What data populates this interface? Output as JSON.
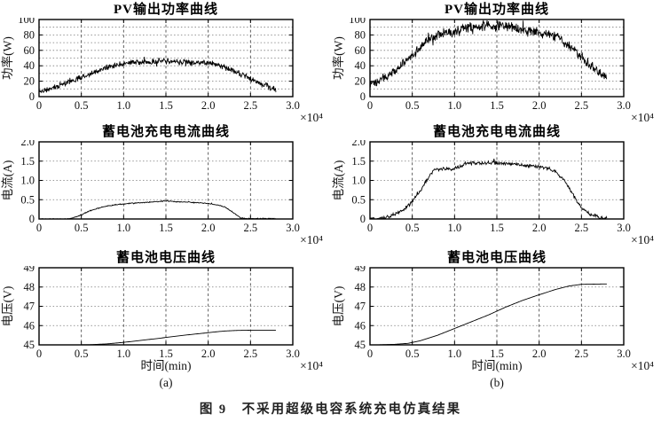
{
  "figure": {
    "caption": "图 9　不采用超级电容系统充电仿真结果"
  },
  "chart_data": [
    {
      "id": "pv-power-a",
      "type": "line",
      "title": "PV输出功率曲线",
      "ylabel": "功率(W)",
      "xlabel": "",
      "sublabel": "",
      "x_scale_label": "×10⁴",
      "xlim": [
        0,
        3.0
      ],
      "xticks": [
        0,
        0.5,
        1.0,
        1.5,
        2.0,
        2.5,
        3.0
      ],
      "xtick_labels": [
        "0",
        "0.5",
        "1.0",
        "1.5",
        "2.0",
        "2.5",
        "3.0"
      ],
      "ylim": [
        0,
        100
      ],
      "yticks": [
        0,
        20,
        40,
        60,
        80,
        100
      ],
      "ytick_labels": [
        "0",
        "20",
        "40",
        "60",
        "80",
        "100"
      ],
      "minor_y_step": 10,
      "grid": true,
      "noise_amp": 4.5,
      "samples": 560,
      "seed": 11,
      "stroke_width": 0.85,
      "points": [
        [
          0,
          6
        ],
        [
          0.1,
          9
        ],
        [
          0.2,
          13
        ],
        [
          0.3,
          17
        ],
        [
          0.4,
          21
        ],
        [
          0.5,
          25
        ],
        [
          0.6,
          29
        ],
        [
          0.7,
          34
        ],
        [
          0.8,
          38
        ],
        [
          0.9,
          41
        ],
        [
          1.0,
          43
        ],
        [
          1.1,
          44
        ],
        [
          1.2,
          44
        ],
        [
          1.3,
          45
        ],
        [
          1.4,
          46
        ],
        [
          1.5,
          46
        ],
        [
          1.6,
          45
        ],
        [
          1.7,
          45
        ],
        [
          1.8,
          44
        ],
        [
          1.9,
          44
        ],
        [
          2.0,
          43
        ],
        [
          2.1,
          42
        ],
        [
          2.2,
          38
        ],
        [
          2.3,
          33
        ],
        [
          2.4,
          28
        ],
        [
          2.5,
          23
        ],
        [
          2.6,
          18
        ],
        [
          2.7,
          13
        ],
        [
          2.8,
          9
        ]
      ]
    },
    {
      "id": "pv-power-b",
      "type": "line",
      "title": "PV输出功率曲线",
      "ylabel": "功率(W)",
      "xlabel": "",
      "sublabel": "",
      "x_scale_label": "×10⁴",
      "xlim": [
        0,
        3.0
      ],
      "xticks": [
        0,
        0.5,
        1.0,
        1.5,
        2.0,
        2.5,
        3.0
      ],
      "xtick_labels": [
        "0",
        "0.5",
        "1.0",
        "1.5",
        "2.0",
        "2.5",
        "3.0"
      ],
      "ylim": [
        0,
        100
      ],
      "yticks": [
        0,
        20,
        40,
        60,
        80,
        100
      ],
      "ytick_labels": [
        "0",
        "20",
        "40",
        "60",
        "80",
        "100"
      ],
      "minor_y_step": 10,
      "grid": true,
      "noise_amp": 8,
      "samples": 560,
      "seed": 23,
      "stroke_width": 0.85,
      "points": [
        [
          0,
          14
        ],
        [
          0.1,
          20
        ],
        [
          0.2,
          27
        ],
        [
          0.3,
          34
        ],
        [
          0.4,
          43
        ],
        [
          0.5,
          53
        ],
        [
          0.6,
          64
        ],
        [
          0.7,
          75
        ],
        [
          0.8,
          81
        ],
        [
          0.9,
          84
        ],
        [
          1.0,
          84
        ],
        [
          1.1,
          87
        ],
        [
          1.2,
          90
        ],
        [
          1.3,
          91
        ],
        [
          1.4,
          92
        ],
        [
          1.5,
          92
        ],
        [
          1.6,
          91
        ],
        [
          1.7,
          89
        ],
        [
          1.8,
          87
        ],
        [
          1.9,
          84
        ],
        [
          2.0,
          82
        ],
        [
          2.1,
          82
        ],
        [
          2.2,
          78
        ],
        [
          2.3,
          70
        ],
        [
          2.4,
          61
        ],
        [
          2.5,
          52
        ],
        [
          2.6,
          42
        ],
        [
          2.7,
          33
        ],
        [
          2.8,
          24
        ]
      ]
    },
    {
      "id": "batt-current-a",
      "type": "line",
      "title": "蓄电池充电电流曲线",
      "ylabel": "电流(A)",
      "xlabel": "",
      "sublabel": "",
      "x_scale_label": "×10⁴",
      "xlim": [
        0,
        3.0
      ],
      "xticks": [
        0,
        0.5,
        1.0,
        1.5,
        2.0,
        2.5,
        3.0
      ],
      "xtick_labels": [
        "0",
        "0.5",
        "1.0",
        "1.5",
        "2.0",
        "2.5",
        "3.0"
      ],
      "ylim": [
        0,
        2.0
      ],
      "yticks": [
        0,
        0.5,
        1.0,
        1.5,
        2.0
      ],
      "ytick_labels": [
        "0",
        "0.5",
        "1.0",
        "1.5",
        "2.0"
      ],
      "minor_y_step": null,
      "grid": true,
      "noise_amp": 0.015,
      "samples": 420,
      "seed": 5,
      "stroke_width": 0.9,
      "points": [
        [
          0,
          0
        ],
        [
          0.35,
          0
        ],
        [
          0.45,
          0.06
        ],
        [
          0.55,
          0.16
        ],
        [
          0.65,
          0.25
        ],
        [
          0.75,
          0.31
        ],
        [
          0.85,
          0.35
        ],
        [
          0.95,
          0.38
        ],
        [
          1.1,
          0.41
        ],
        [
          1.25,
          0.43
        ],
        [
          1.4,
          0.45
        ],
        [
          1.5,
          0.47
        ],
        [
          1.6,
          0.45
        ],
        [
          1.75,
          0.44
        ],
        [
          1.9,
          0.42
        ],
        [
          2.0,
          0.4
        ],
        [
          2.1,
          0.37
        ],
        [
          2.2,
          0.31
        ],
        [
          2.3,
          0.16
        ],
        [
          2.38,
          0.03
        ],
        [
          2.45,
          0.01
        ],
        [
          2.8,
          0.01
        ]
      ]
    },
    {
      "id": "batt-current-b",
      "type": "line",
      "title": "蓄电池充电电流曲线",
      "ylabel": "电流(A)",
      "xlabel": "",
      "sublabel": "",
      "x_scale_label": "×10⁴",
      "xlim": [
        0,
        3.0
      ],
      "xticks": [
        0,
        0.5,
        1.0,
        1.5,
        2.0,
        2.5,
        3.0
      ],
      "xtick_labels": [
        "0",
        "0.5",
        "1.0",
        "1.5",
        "2.0",
        "2.5",
        "3.0"
      ],
      "ylim": [
        0,
        2.0
      ],
      "yticks": [
        0,
        0.5,
        1.0,
        1.5,
        2.0
      ],
      "ytick_labels": [
        "0",
        "0.5",
        "1.0",
        "1.5",
        "2.0"
      ],
      "minor_y_step": null,
      "grid": true,
      "noise_amp": 0.055,
      "samples": 420,
      "seed": 9,
      "stroke_width": 0.9,
      "points": [
        [
          0,
          0
        ],
        [
          0.1,
          0.01
        ],
        [
          0.2,
          0.05
        ],
        [
          0.3,
          0.12
        ],
        [
          0.4,
          0.25
        ],
        [
          0.5,
          0.45
        ],
        [
          0.6,
          0.75
        ],
        [
          0.7,
          1.1
        ],
        [
          0.75,
          1.28
        ],
        [
          0.85,
          1.3
        ],
        [
          0.95,
          1.28
        ],
        [
          1.05,
          1.35
        ],
        [
          1.15,
          1.45
        ],
        [
          1.3,
          1.45
        ],
        [
          1.45,
          1.47
        ],
        [
          1.6,
          1.44
        ],
        [
          1.75,
          1.42
        ],
        [
          1.9,
          1.38
        ],
        [
          2.0,
          1.35
        ],
        [
          2.1,
          1.32
        ],
        [
          2.2,
          1.22
        ],
        [
          2.3,
          1.0
        ],
        [
          2.4,
          0.62
        ],
        [
          2.5,
          0.3
        ],
        [
          2.6,
          0.12
        ],
        [
          2.7,
          0.05
        ],
        [
          2.8,
          0.01
        ]
      ]
    },
    {
      "id": "batt-voltage-a",
      "type": "line",
      "title": "蓄电池电压曲线",
      "ylabel": "电压(V)",
      "xlabel": "时间(min)",
      "sublabel": "(a)",
      "x_scale_label": "×10⁴",
      "xlim": [
        0,
        3.0
      ],
      "xticks": [
        0,
        0.5,
        1.0,
        1.5,
        2.0,
        2.5,
        3.0
      ],
      "xtick_labels": [
        "0",
        "0.5",
        "1.0",
        "1.5",
        "2.0",
        "2.5",
        "3.0"
      ],
      "ylim": [
        45,
        49
      ],
      "yticks": [
        45,
        46,
        47,
        48,
        49
      ],
      "ytick_labels": [
        "45",
        "46",
        "47",
        "48",
        "49"
      ],
      "minor_y_step": null,
      "grid": true,
      "noise_amp": 0,
      "samples": 220,
      "seed": 1,
      "stroke_width": 0.9,
      "points": [
        [
          0.38,
          45.0
        ],
        [
          0.6,
          45.01
        ],
        [
          0.8,
          45.05
        ],
        [
          1.0,
          45.13
        ],
        [
          1.2,
          45.23
        ],
        [
          1.4,
          45.33
        ],
        [
          1.6,
          45.44
        ],
        [
          1.8,
          45.54
        ],
        [
          2.0,
          45.63
        ],
        [
          2.1,
          45.68
        ],
        [
          2.2,
          45.72
        ],
        [
          2.35,
          45.75
        ],
        [
          2.5,
          45.76
        ],
        [
          2.8,
          45.76
        ]
      ]
    },
    {
      "id": "batt-voltage-b",
      "type": "line",
      "title": "蓄电池电压曲线",
      "ylabel": "电压(V)",
      "xlabel": "时间(min)",
      "sublabel": "(b)",
      "x_scale_label": "×10⁴",
      "xlim": [
        0,
        3.0
      ],
      "xticks": [
        0,
        0.5,
        1.0,
        1.5,
        2.0,
        2.5,
        3.0
      ],
      "xtick_labels": [
        "0",
        "0.5",
        "1.0",
        "1.5",
        "2.0",
        "2.5",
        "3.0"
      ],
      "ylim": [
        45,
        49
      ],
      "yticks": [
        45,
        46,
        47,
        48,
        49
      ],
      "ytick_labels": [
        "45",
        "46",
        "47",
        "48",
        "49"
      ],
      "minor_y_step": null,
      "grid": true,
      "noise_amp": 0,
      "samples": 220,
      "seed": 2,
      "stroke_width": 0.9,
      "points": [
        [
          0.07,
          45.0
        ],
        [
          0.3,
          45.03
        ],
        [
          0.45,
          45.08
        ],
        [
          0.6,
          45.22
        ],
        [
          0.8,
          45.5
        ],
        [
          1.0,
          45.85
        ],
        [
          1.2,
          46.2
        ],
        [
          1.4,
          46.55
        ],
        [
          1.6,
          46.95
        ],
        [
          1.8,
          47.3
        ],
        [
          2.0,
          47.6
        ],
        [
          2.2,
          47.88
        ],
        [
          2.35,
          48.05
        ],
        [
          2.5,
          48.14
        ],
        [
          2.8,
          48.16
        ]
      ]
    }
  ]
}
